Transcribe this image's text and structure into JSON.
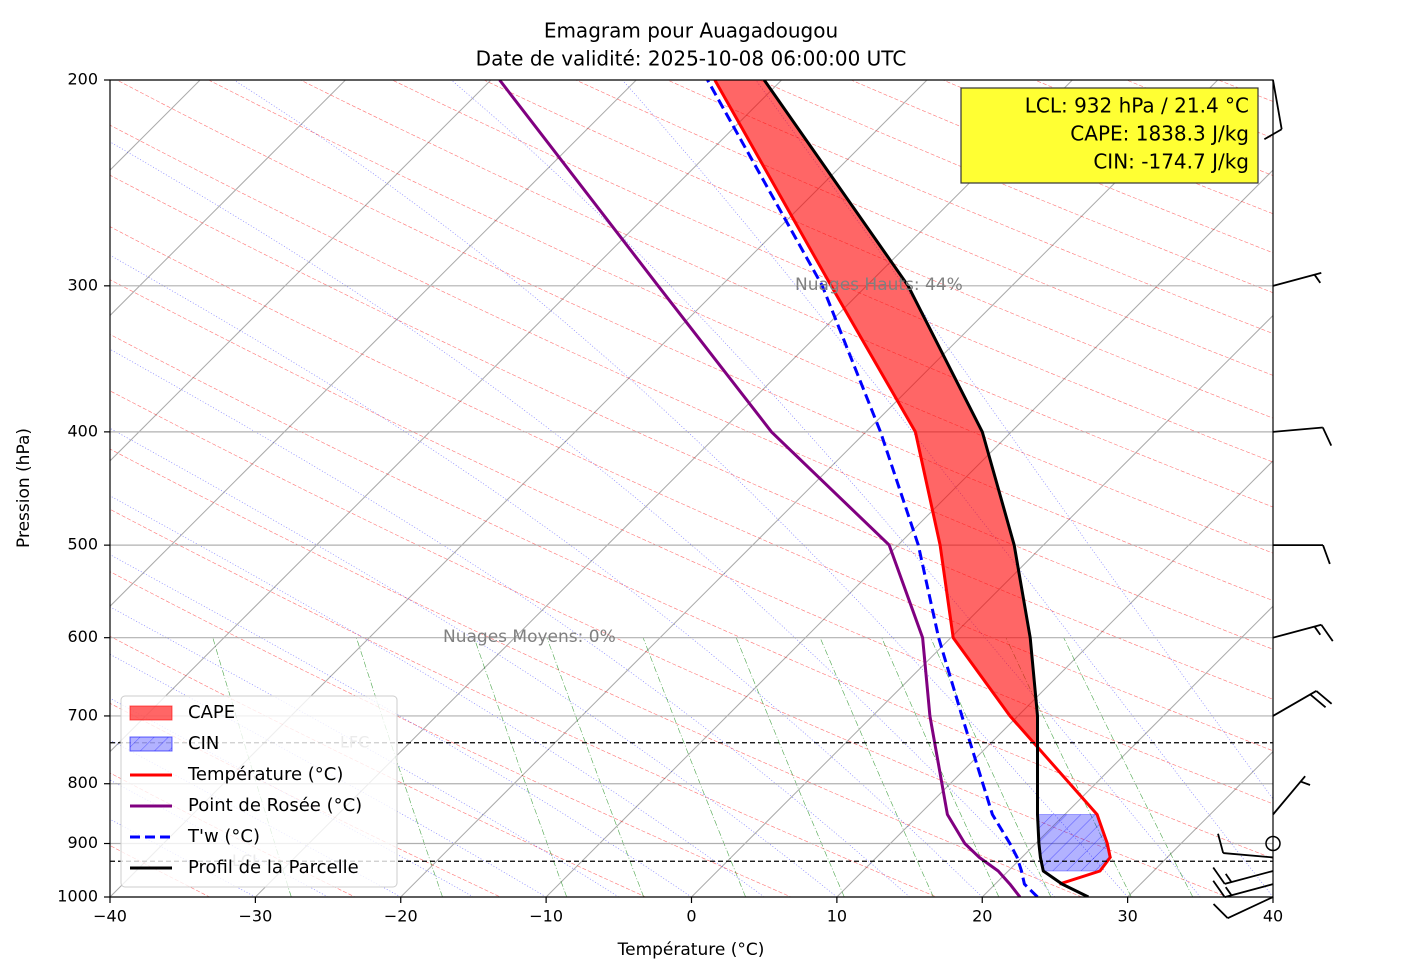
{
  "chart_data": {
    "type": "emagram",
    "title": "Emagram pour Auagadougou",
    "subtitle": "Date de validité: 2025-10-08 06:00:00 UTC",
    "x_label": "Température (°C)",
    "y_label": "Pression (hPa)",
    "xlim": [
      -40,
      40
    ],
    "ylim": [
      1000,
      200
    ],
    "log_y": true,
    "grid": true,
    "legend": "lower left",
    "xticks": [
      {
        "value": -40,
        "label": "−40"
      },
      {
        "value": -30,
        "label": "−30"
      },
      {
        "value": -20,
        "label": "−20"
      },
      {
        "value": -10,
        "label": "−10"
      },
      0,
      10,
      20,
      30,
      40
    ],
    "yticks": [
      200,
      300,
      400,
      500,
      600,
      700,
      800,
      900,
      1000
    ],
    "pressure": [
      1000,
      975,
      950,
      925,
      900,
      850,
      700,
      600,
      500,
      400,
      300,
      200
    ],
    "series": [
      {
        "name": "Température (°C)",
        "color": "#ff0000",
        "linestyle": "solid",
        "values": [
          null,
          25.3,
          28.1,
          28.8,
          28.6,
          27.9,
          21.9,
          18.0,
          17.1,
          15.4,
          9.6,
          1.6
        ]
      },
      {
        "name": "Point de Rosée (°C)",
        "color": "#800080",
        "linestyle": "solid",
        "values": [
          22.6,
          21.9,
          21.1,
          19.8,
          18.8,
          17.6,
          16.4,
          15.9,
          13.6,
          5.5,
          -2.3,
          -13.2
        ]
      },
      {
        "name": "T'w (°C)",
        "color": "#0000ff",
        "linestyle": "dashed",
        "values": [
          23.8,
          22.9,
          22.7,
          22.4,
          21.9,
          20.7,
          18.6,
          17.0,
          15.6,
          13.0,
          9.0,
          1.1
        ]
      },
      {
        "name": "Profil de la Parcelle",
        "color": "#000000",
        "linestyle": "solid",
        "values": [
          27.3,
          25.5,
          24.2,
          24.0,
          23.9,
          23.8,
          23.8,
          23.3,
          22.2,
          20.0,
          14.9,
          5.0
        ]
      }
    ],
    "fills": [
      {
        "name": "CAPE",
        "color": "#ff0000"
      },
      {
        "name": "CIN",
        "color": "#0000ff"
      }
    ],
    "levels": [
      {
        "name": "LFC",
        "pressure": 738
      },
      {
        "name": "LCL",
        "pressure": 932
      }
    ],
    "annotations": [
      "Nuages Hauts: 44%",
      "Nuages Moyens: 0%"
    ],
    "info_box": [
      "LCL: 932 hPa / 21.4 °C",
      "CAPE: 1838.3 J/kg",
      "CIN: -174.7 J/kg"
    ],
    "wind": {
      "pressure": [
        200,
        300,
        400,
        500,
        600,
        700,
        850,
        900,
        925,
        950,
        975,
        1000
      ],
      "speed": [
        10,
        5,
        10,
        10,
        15,
        20,
        5,
        0,
        10,
        15,
        15,
        10
      ],
      "direction": [
        170,
        75,
        85,
        90,
        75,
        60,
        40,
        0,
        275,
        255,
        255,
        245
      ]
    }
  }
}
